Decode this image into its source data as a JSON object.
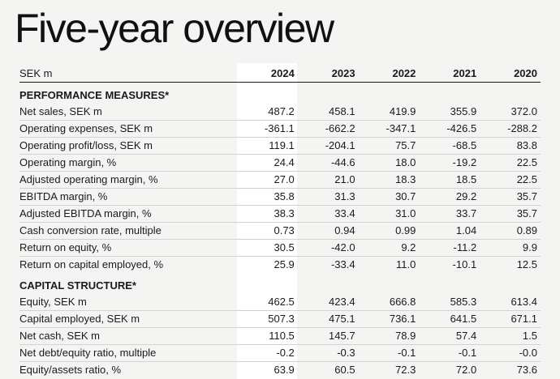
{
  "title": "Five-year overview",
  "table": {
    "unit_label": "SEK m",
    "years": [
      "2024",
      "2023",
      "2022",
      "2021",
      "2020"
    ],
    "sections": [
      {
        "heading": "PERFORMANCE MEASURES*",
        "rows": [
          {
            "label": "Net sales, SEK m",
            "values": [
              "487.2",
              "458.1",
              "419.9",
              "355.9",
              "372.0"
            ]
          },
          {
            "label": "Operating expenses, SEK m",
            "values": [
              "-361.1",
              "-662.2",
              "-347.1",
              "-426.5",
              "-288.2"
            ]
          },
          {
            "label": "Operating profit/loss, SEK m",
            "values": [
              "119.1",
              "-204.1",
              "75.7",
              "-68.5",
              "83.8"
            ]
          },
          {
            "label": "Operating margin, %",
            "values": [
              "24.4",
              "-44.6",
              "18.0",
              "-19.2",
              "22.5"
            ]
          },
          {
            "label": "Adjusted operating margin, %",
            "values": [
              "27.0",
              "21.0",
              "18.3",
              "18.5",
              "22.5"
            ]
          },
          {
            "label": "EBITDA margin, %",
            "values": [
              "35.8",
              "31.3",
              "30.7",
              "29.2",
              "35.7"
            ]
          },
          {
            "label": "Adjusted EBITDA margin, %",
            "values": [
              "38.3",
              "33.4",
              "31.0",
              "33.7",
              "35.7"
            ]
          },
          {
            "label": "Cash conversion rate, multiple",
            "values": [
              "0.73",
              "0.94",
              "0.99",
              "1.04",
              "0.89"
            ]
          },
          {
            "label": "Return on equity, %",
            "values": [
              "30.5",
              "-42.0",
              "9.2",
              "-11.2",
              "9.9"
            ]
          },
          {
            "label": "Return on capital employed, %",
            "values": [
              "25.9",
              "-33.4",
              "11.0",
              "-10.1",
              "12.5"
            ]
          }
        ]
      },
      {
        "heading": "CAPITAL STRUCTURE*",
        "rows": [
          {
            "label": "Equity, SEK m",
            "values": [
              "462.5",
              "423.4",
              "666.8",
              "585.3",
              "613.4"
            ]
          },
          {
            "label": "Capital employed, SEK m",
            "values": [
              "507.3",
              "475.1",
              "736.1",
              "641.5",
              "671.1"
            ]
          },
          {
            "label": "Net cash, SEK m",
            "values": [
              "110.5",
              "145.7",
              "78.9",
              "57.4",
              "1.5"
            ]
          },
          {
            "label": "Net debt/equity ratio, multiple",
            "values": [
              "-0.2",
              "-0.3",
              "-0.1",
              "-0.1",
              "-0.0"
            ]
          },
          {
            "label": "Equity/assets ratio, %",
            "values": [
              "63.9",
              "60.5",
              "72.3",
              "72.0",
              "73.6"
            ]
          }
        ]
      }
    ]
  },
  "colors": {
    "page_background": "#f4f4f3",
    "highlight_column": "#ffffff",
    "text": "#1a1a1a",
    "row_divider": "#d2d2d0"
  }
}
